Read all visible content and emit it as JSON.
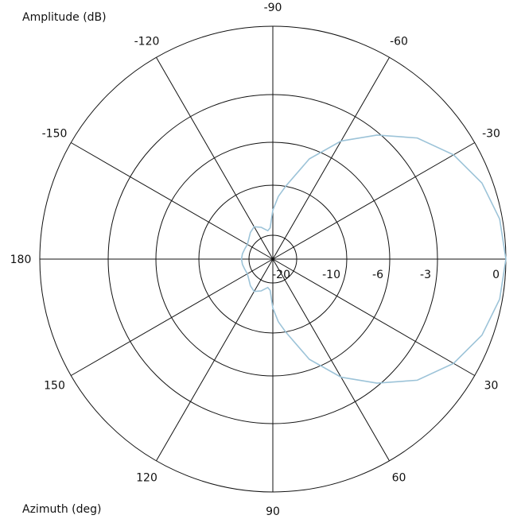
{
  "chart_data": {
    "type": "polar-line",
    "radial_label": "Amplitude (dB)",
    "angular_label": "Azimuth (deg)",
    "radial_ticks": [
      "-20",
      "-10",
      "-6",
      "-3",
      "0"
    ],
    "radial_values": [
      -20,
      -10,
      -6,
      -3,
      0
    ],
    "angular_ticks": [
      "-90",
      "-60",
      "-30",
      "0",
      "30",
      "60",
      "90",
      "120",
      "150",
      "180",
      "-150",
      "-120"
    ],
    "angular_values": [
      -90,
      -60,
      -30,
      0,
      30,
      60,
      90,
      120,
      150,
      180,
      -150,
      -120
    ],
    "series": [
      {
        "color": "#9cc3d8",
        "azimuth_deg": [
          0,
          10,
          20,
          30,
          40,
          50,
          60,
          70,
          80,
          85,
          90,
          95,
          100,
          110,
          120,
          130,
          140,
          150,
          160,
          170,
          180,
          -170,
          -160,
          -150,
          -140,
          -130,
          -120,
          -110,
          -100,
          -95,
          -90,
          -85,
          -80,
          -70,
          -60,
          -50,
          -40,
          -30,
          -20,
          -10
        ],
        "amplitude_db": [
          0,
          -0.12,
          -0.46,
          -1.07,
          -1.95,
          -3.16,
          -4.77,
          -6.95,
          -10.0,
          -12.2,
          -15.0,
          -18.5,
          -19.0,
          -18.0,
          -17.3,
          -17.8,
          -18.5,
          -18.9,
          -18.8,
          -18.6,
          -18.5,
          -18.6,
          -18.8,
          -18.9,
          -18.5,
          -17.8,
          -17.3,
          -18.0,
          -19.0,
          -18.5,
          -15.0,
          -12.2,
          -10.0,
          -6.95,
          -4.77,
          -3.16,
          -1.95,
          -1.07,
          -0.46,
          -0.12
        ]
      }
    ]
  }
}
